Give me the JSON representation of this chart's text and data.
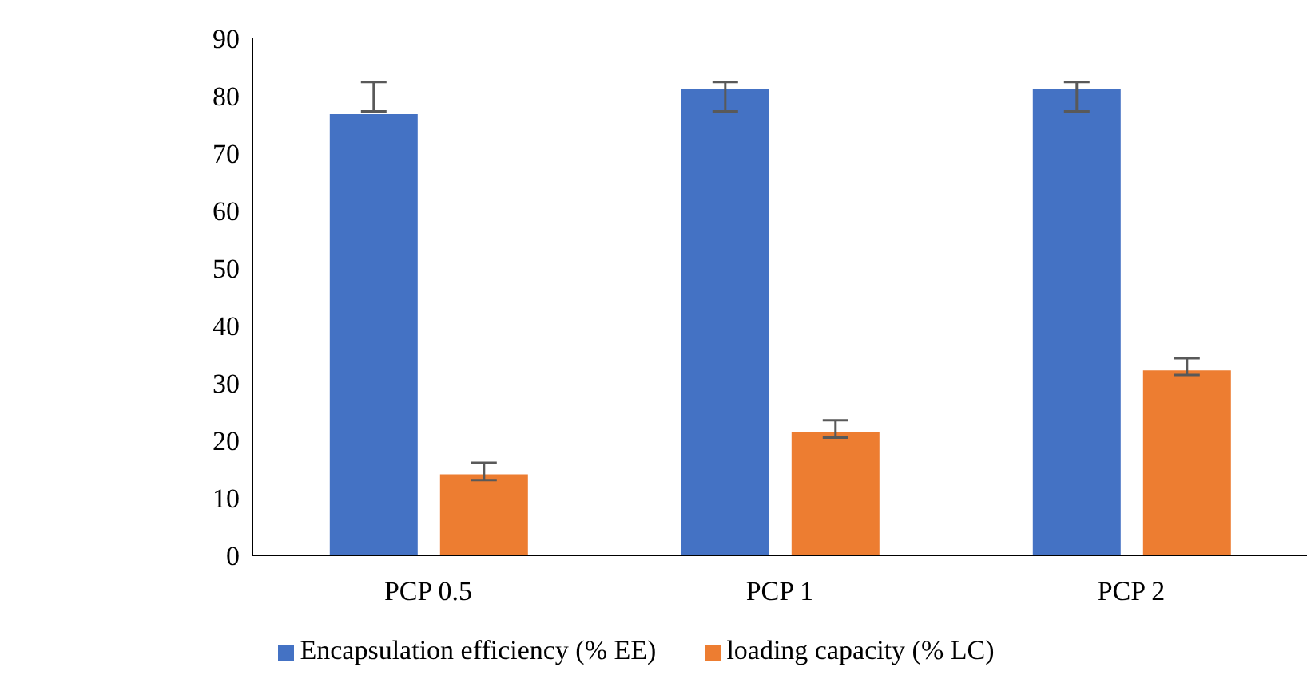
{
  "chart_data": {
    "type": "bar",
    "categories": [
      "PCP 0.5",
      "PCP 1",
      "PCP 2"
    ],
    "series": [
      {
        "name": "Encapsulation efficiency (% EE)",
        "color": "#4472c4",
        "values": [
          76.8,
          81.2,
          81.2
        ],
        "errors": [
          [
            77.3,
            82.4
          ],
          [
            77.3,
            82.4
          ],
          [
            77.3,
            82.4
          ]
        ]
      },
      {
        "name": "loading capacity (% LC)",
        "color": "#ed7d31",
        "values": [
          14.1,
          21.4,
          32.2
        ],
        "errors": [
          [
            13.1,
            16.1
          ],
          [
            20.5,
            23.5
          ],
          [
            31.4,
            34.3
          ]
        ]
      }
    ],
    "ylim": [
      0,
      90
    ],
    "yticks": [
      0,
      10,
      20,
      30,
      40,
      50,
      60,
      70,
      80,
      90
    ],
    "grid": false,
    "legend": "bottom"
  }
}
